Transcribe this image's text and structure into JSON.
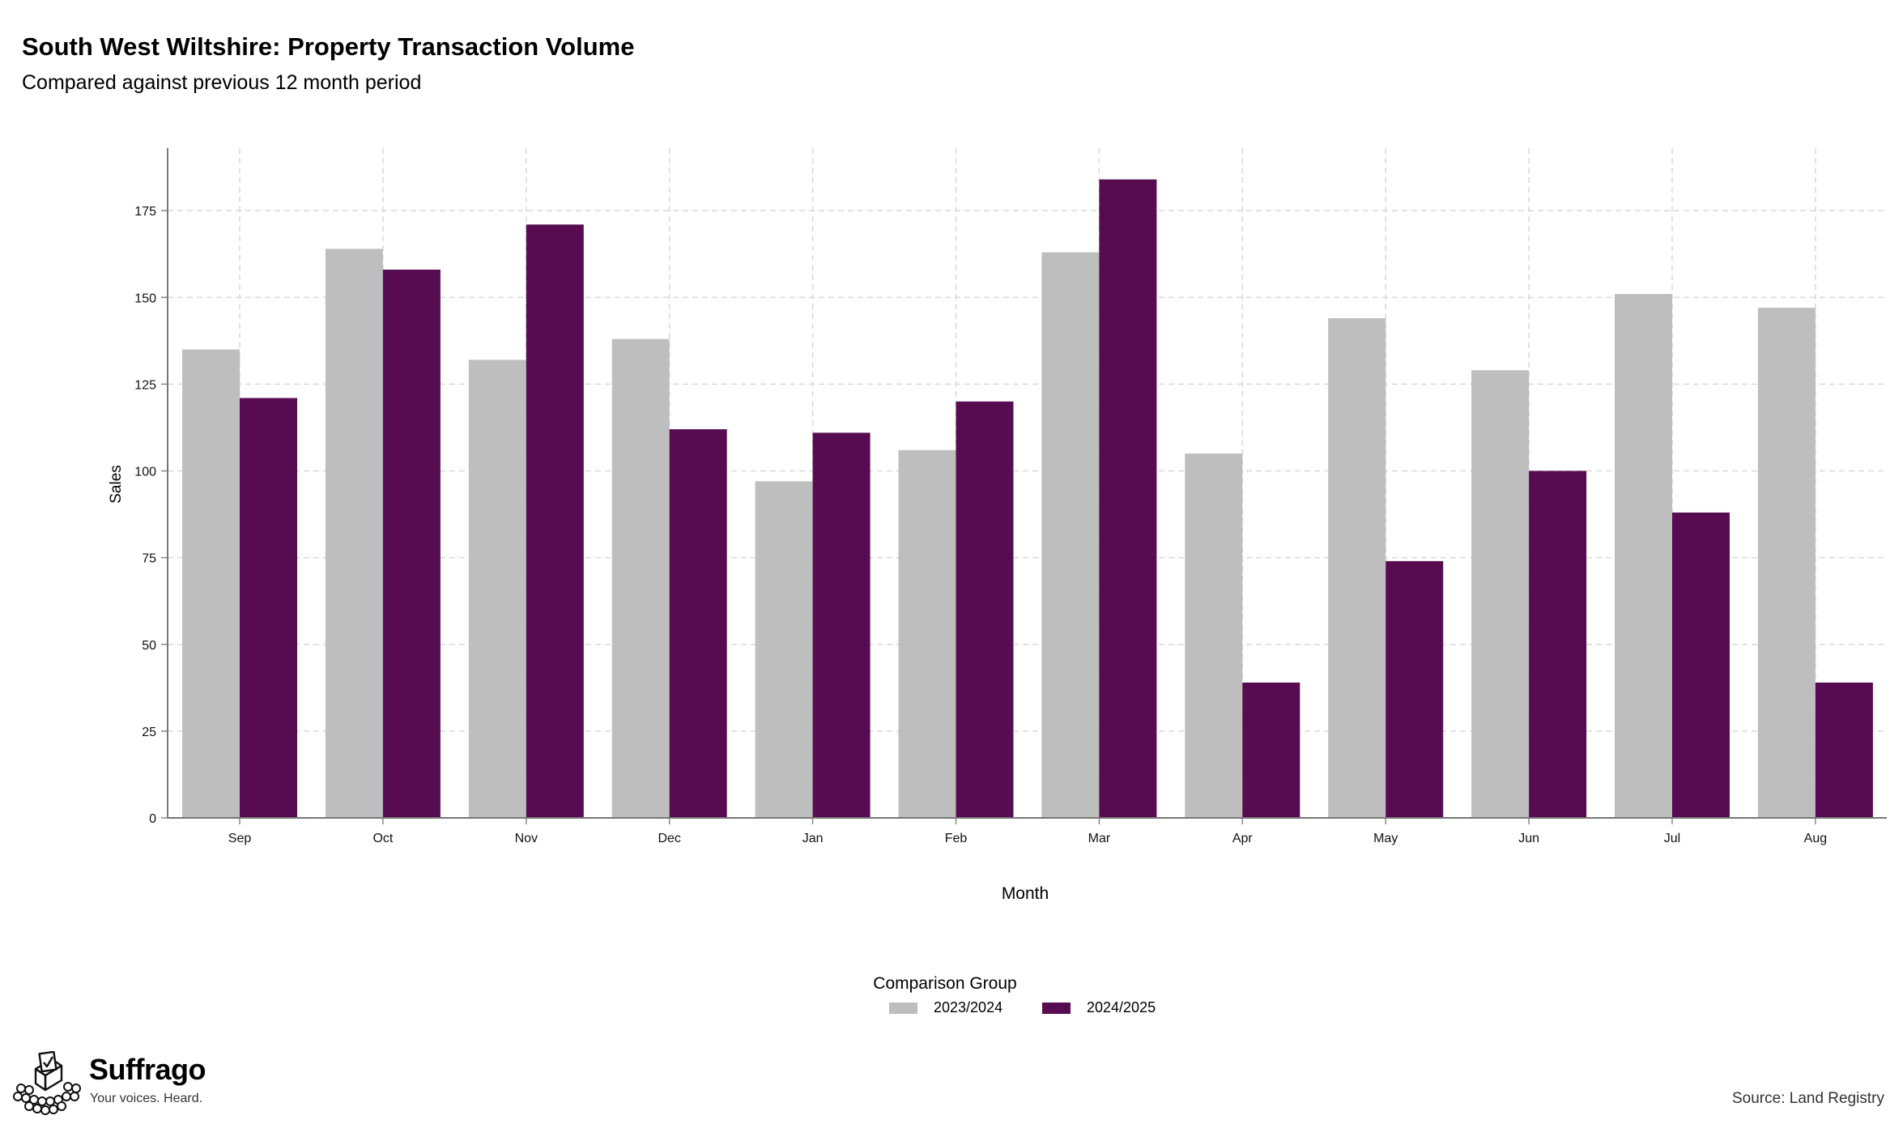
{
  "header": {
    "title": "South West Wiltshire: Property Transaction Volume",
    "subtitle": "Compared against previous 12 month period"
  },
  "legend": {
    "title": "Comparison Group",
    "items": [
      {
        "label": "2023/2024",
        "color": "#bebebe"
      },
      {
        "label": "2024/2025",
        "color": "#570b50"
      }
    ]
  },
  "footer": {
    "brand": "Suffrago",
    "tagline": "Your voices. Heard.",
    "source": "Source: Land Registry"
  },
  "chart_data": {
    "type": "bar",
    "title": "South West Wiltshire: Property Transaction Volume",
    "subtitle": "Compared against previous 12 month period",
    "xlabel": "Month",
    "ylabel": "Sales",
    "categories": [
      "Sep",
      "Oct",
      "Nov",
      "Dec",
      "Jan",
      "Feb",
      "Mar",
      "Apr",
      "May",
      "Jun",
      "Jul",
      "Aug"
    ],
    "series": [
      {
        "name": "2023/2024",
        "color": "#bebebe",
        "values": [
          135,
          164,
          132,
          138,
          97,
          106,
          163,
          105,
          144,
          129,
          151,
          147
        ]
      },
      {
        "name": "2024/2025",
        "color": "#570b50",
        "values": [
          121,
          158,
          171,
          112,
          111,
          120,
          184,
          39,
          74,
          100,
          88,
          39
        ]
      }
    ],
    "yticks": [
      0,
      25,
      50,
      75,
      100,
      125,
      150,
      175
    ],
    "ylim": [
      0,
      193
    ],
    "grid": true,
    "legend_position": "bottom"
  }
}
